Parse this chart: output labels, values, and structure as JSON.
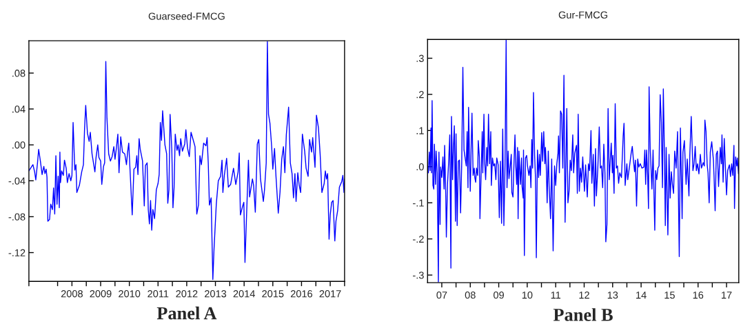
{
  "chart_data": [
    {
      "type": "line",
      "title": "Guarseed-FMCG",
      "annotations": [
        "Panel A"
      ],
      "grid": false,
      "legend": false,
      "xlim": [
        2007,
        2018
      ],
      "ylim": [
        -0.152,
        0.116
      ],
      "xticks": [
        {
          "value": 2007,
          "label": null
        },
        {
          "value": 2008,
          "label": null
        },
        {
          "value": 2008.5,
          "label": "2008"
        },
        {
          "value": 2009,
          "label": null
        },
        {
          "value": 2009.5,
          "label": "2009"
        },
        {
          "value": 2010,
          "label": null
        },
        {
          "value": 2010.5,
          "label": "2010"
        },
        {
          "value": 2011,
          "label": null
        },
        {
          "value": 2011.5,
          "label": "2011"
        },
        {
          "value": 2012,
          "label": null
        },
        {
          "value": 2012.5,
          "label": "2012"
        },
        {
          "value": 2013,
          "label": null
        },
        {
          "value": 2013.5,
          "label": "2013"
        },
        {
          "value": 2014,
          "label": null
        },
        {
          "value": 2014.5,
          "label": "2014"
        },
        {
          "value": 2015,
          "label": null
        },
        {
          "value": 2015.5,
          "label": "2015"
        },
        {
          "value": 2016,
          "label": null
        },
        {
          "value": 2016.5,
          "label": "2016"
        },
        {
          "value": 2017,
          "label": null
        },
        {
          "value": 2017.5,
          "label": "2017"
        },
        {
          "value": 2018,
          "label": null
        }
      ],
      "yticks": [
        {
          "value": -0.12,
          "label": "-.12"
        },
        {
          "value": -0.08,
          "label": "-.08"
        },
        {
          "value": -0.04,
          "label": "-.04"
        },
        {
          "value": 0,
          "label": ".00"
        },
        {
          "value": 0.04,
          "label": ".04"
        },
        {
          "value": 0.08,
          "label": ".08"
        }
      ],
      "series": [
        {
          "color": "#0000ff",
          "x": [
            2007.0,
            2007.14,
            2007.2,
            2007.24,
            2007.3,
            2007.34,
            2007.4,
            2007.46,
            2007.52,
            2007.56,
            2007.6,
            2007.63,
            2007.66,
            2007.72,
            2007.76,
            2007.82,
            2007.86,
            2007.9,
            2007.94,
            2007.98,
            2008.02,
            2008.06,
            2008.08,
            2008.1,
            2008.14,
            2008.2,
            2008.24,
            2008.3,
            2008.34,
            2008.4,
            2008.46,
            2008.5,
            2008.54,
            2008.6,
            2008.64,
            2008.67,
            2008.76,
            2008.84,
            2008.9,
            2008.94,
            2008.98,
            2009.04,
            2009.1,
            2009.14,
            2009.2,
            2009.26,
            2009.3,
            2009.34,
            2009.4,
            2009.44,
            2009.5,
            2009.54,
            2009.6,
            2009.64,
            2009.68,
            2009.72,
            2009.78,
            2009.84,
            2009.9,
            2009.96,
            2010.0,
            2010.04,
            2010.1,
            2010.14,
            2010.2,
            2010.26,
            2010.34,
            2010.4,
            2010.44,
            2010.48,
            2010.52,
            2010.6,
            2010.66,
            2010.72,
            2010.76,
            2010.8,
            2010.84,
            2010.88,
            2010.96,
            2011.02,
            2011.06,
            2011.12,
            2011.16,
            2011.2,
            2011.24,
            2011.28,
            2011.32,
            2011.38,
            2011.44,
            2011.5,
            2011.54,
            2011.58,
            2011.62,
            2011.66,
            2011.74,
            2011.8,
            2011.84,
            2011.88,
            2011.92,
            2011.98,
            2012.02,
            2012.06,
            2012.1,
            2012.16,
            2012.2,
            2012.25,
            2012.29,
            2012.35,
            2012.43,
            2012.47,
            2012.53,
            2012.59,
            2012.65,
            2012.73,
            2012.79,
            2012.85,
            2012.91,
            2012.96,
            2013.01,
            2013.09,
            2013.17,
            2013.21,
            2013.25,
            2013.29,
            2013.35,
            2013.41,
            2013.45,
            2013.53,
            2013.6,
            2013.68,
            2013.73,
            2013.76,
            2013.81,
            2013.89,
            2013.95,
            2014.03,
            2014.13,
            2014.21,
            2014.29,
            2014.33,
            2014.37,
            2014.45,
            2014.49,
            2014.53,
            2014.65,
            2014.69,
            2014.79,
            2014.83,
            2014.89,
            2014.96,
            2015.01,
            2015.07,
            2015.17,
            2015.21,
            2015.27,
            2015.31,
            2015.35,
            2015.4,
            2015.46,
            2015.5,
            2015.56,
            2015.61,
            2015.69,
            2015.75,
            2015.81,
            2015.87,
            2015.92,
            2015.97,
            2016.05,
            2016.11,
            2016.17,
            2016.22,
            2016.27,
            2016.31,
            2016.37,
            2016.42,
            2016.47,
            2016.53,
            2016.61,
            2016.66,
            2016.73,
            2016.78,
            2016.85,
            2016.89,
            2016.97,
            2017.02,
            2017.09,
            2017.15,
            2017.21,
            2017.29,
            2017.33,
            2017.37,
            2017.41,
            2017.46,
            2017.5,
            2017.55,
            2017.6,
            2017.66,
            2017.7,
            2017.76,
            2017.82,
            2017.9,
            2017.94,
            2017.98,
            2018.0
          ],
          "values": [
            -0.029,
            -0.022,
            -0.03,
            -0.039,
            -0.02,
            -0.005,
            -0.018,
            -0.033,
            -0.024,
            -0.032,
            -0.027,
            -0.036,
            -0.085,
            -0.083,
            -0.066,
            -0.072,
            -0.048,
            -0.077,
            -0.012,
            -0.066,
            -0.035,
            -0.07,
            -0.008,
            -0.042,
            -0.029,
            -0.034,
            -0.017,
            -0.026,
            -0.042,
            -0.032,
            -0.04,
            -0.034,
            0.025,
            -0.028,
            -0.022,
            -0.053,
            -0.045,
            -0.03,
            -0.022,
            0.018,
            0.044,
            0.013,
            0.004,
            0.014,
            -0.01,
            -0.022,
            -0.03,
            -0.014,
            0.0,
            -0.014,
            -0.018,
            -0.044,
            -0.024,
            -0.02,
            0.093,
            0.03,
            -0.01,
            -0.018,
            -0.013,
            -0.002,
            -0.016,
            -0.006,
            0.012,
            -0.031,
            0.009,
            -0.008,
            -0.01,
            -0.022,
            -0.008,
            0.002,
            -0.025,
            -0.078,
            -0.027,
            -0.025,
            -0.012,
            -0.033,
            0.007,
            -0.005,
            -0.018,
            -0.068,
            -0.023,
            -0.02,
            -0.072,
            -0.088,
            -0.062,
            -0.095,
            -0.072,
            -0.082,
            -0.05,
            -0.043,
            -0.033,
            0.025,
            0.005,
            0.038,
            0.0,
            -0.01,
            -0.065,
            -0.05,
            0.034,
            -0.005,
            -0.07,
            -0.047,
            0.012,
            -0.006,
            0.0,
            -0.012,
            0.007,
            -0.007,
            0.001,
            0.017,
            -0.004,
            -0.013,
            0.014,
            0.005,
            -0.002,
            -0.077,
            -0.067,
            -0.012,
            -0.022,
            0.002,
            -0.001,
            0.008,
            -0.02,
            -0.067,
            -0.059,
            -0.15,
            -0.117,
            -0.066,
            -0.04,
            -0.035,
            -0.017,
            -0.053,
            -0.034,
            -0.015,
            -0.047,
            -0.044,
            -0.026,
            -0.044,
            -0.03,
            -0.009,
            -0.078,
            -0.068,
            -0.064,
            -0.131,
            -0.017,
            -0.058,
            -0.038,
            -0.045,
            -0.075,
            0.001,
            0.006,
            -0.038,
            -0.063,
            -0.05,
            -0.02,
            0.115,
            0.034,
            0.024,
            -0.002,
            -0.027,
            -0.004,
            -0.035,
            -0.076,
            -0.053,
            -0.016,
            -0.002,
            -0.031,
            0.011,
            0.042,
            -0.02,
            -0.032,
            -0.059,
            -0.032,
            -0.063,
            -0.031,
            -0.045,
            -0.053,
            0.012,
            -0.007,
            -0.026,
            -0.035,
            0.006,
            -0.008,
            0.008,
            -0.025,
            0.033,
            0.019,
            -0.011,
            -0.053,
            -0.043,
            -0.029,
            -0.038,
            -0.032,
            -0.105,
            -0.078,
            -0.064,
            -0.062,
            -0.107,
            -0.085,
            -0.073,
            -0.047,
            -0.041,
            -0.034,
            -0.053,
            -0.038
          ]
        }
      ]
    },
    {
      "type": "line",
      "title": "Gur-FMCG",
      "annotations": [
        "Panel B"
      ],
      "grid": false,
      "legend": false,
      "xlim": [
        7,
        17.93
      ],
      "ylim": [
        -0.321,
        0.352
      ],
      "xticks": [
        {
          "value": 7.5,
          "label": "07"
        },
        {
          "value": 8,
          "label": null
        },
        {
          "value": 8.5,
          "label": "08"
        },
        {
          "value": 9,
          "label": null
        },
        {
          "value": 9.5,
          "label": "09"
        },
        {
          "value": 10,
          "label": null
        },
        {
          "value": 10.5,
          "label": "10"
        },
        {
          "value": 11,
          "label": null
        },
        {
          "value": 11.5,
          "label": "11"
        },
        {
          "value": 12,
          "label": null
        },
        {
          "value": 12.5,
          "label": "12"
        },
        {
          "value": 13,
          "label": null
        },
        {
          "value": 13.5,
          "label": "13"
        },
        {
          "value": 14,
          "label": null
        },
        {
          "value": 14.5,
          "label": "14"
        },
        {
          "value": 15,
          "label": null
        },
        {
          "value": 15.5,
          "label": "15"
        },
        {
          "value": 16,
          "label": null
        },
        {
          "value": 16.5,
          "label": "16"
        },
        {
          "value": 17,
          "label": null
        },
        {
          "value": 17.5,
          "label": "17"
        }
      ],
      "yticks": [
        {
          "value": -0.3,
          "label": "-.3"
        },
        {
          "value": -0.2,
          "label": "-.2"
        },
        {
          "value": -0.1,
          "label": "-.1"
        },
        {
          "value": 0,
          "label": ".0"
        },
        {
          "value": 0.1,
          "label": ".1"
        },
        {
          "value": 0.2,
          "label": ".2"
        },
        {
          "value": 0.3,
          "label": ".3"
        }
      ],
      "series": [
        {
          "color": "#0000ff",
          "x": [
            7.0,
            7.03,
            7.06,
            7.09,
            7.12,
            7.14,
            7.16,
            7.19,
            7.22,
            7.24,
            7.28,
            7.3,
            7.34,
            7.38,
            7.4,
            7.44,
            7.46,
            7.5,
            7.54,
            7.58,
            7.6,
            7.64,
            7.66,
            7.7,
            7.74,
            7.78,
            7.82,
            7.84,
            7.88,
            7.91,
            7.94,
            7.98,
            8.0,
            8.04,
            8.08,
            8.12,
            8.16,
            8.2,
            8.24,
            8.28,
            8.32,
            8.36,
            8.39,
            8.42,
            8.44,
            8.48,
            8.5,
            8.53,
            8.56,
            8.6,
            8.64,
            8.66,
            8.69,
            8.72,
            8.76,
            8.78,
            8.82,
            8.84,
            8.88,
            8.92,
            8.94,
            8.98,
            9.01,
            9.04,
            9.08,
            9.11,
            9.14,
            9.18,
            9.22,
            9.24,
            9.28,
            9.32,
            9.36,
            9.4,
            9.43,
            9.48,
            9.52,
            9.56,
            9.6,
            9.64,
            9.68,
            9.72,
            9.76,
            9.79,
            9.83,
            9.86,
            9.9,
            9.94,
            9.96,
            10.0,
            10.04,
            10.07,
            10.1,
            10.13,
            10.16,
            10.18,
            10.21,
            10.26,
            10.3,
            10.32,
            10.36,
            10.37,
            10.4,
            10.44,
            10.48,
            10.51,
            10.56,
            10.6,
            10.63,
            10.66,
            10.69,
            10.72,
            10.76,
            10.79,
            10.82,
            10.86,
            10.9,
            10.93,
            10.96,
            11.01,
            11.04,
            11.08,
            11.12,
            11.14,
            11.17,
            11.2,
            11.24,
            11.27,
            11.32,
            11.36,
            11.41,
            11.46,
            11.5,
            11.54,
            11.58,
            11.6,
            11.63,
            11.67,
            11.71,
            11.75,
            11.79,
            11.83,
            11.89,
            11.93,
            11.97,
            12.01,
            12.05,
            12.1,
            12.13,
            12.17,
            12.23,
            12.26,
            12.29,
            12.33,
            12.37,
            12.41,
            12.45,
            12.51,
            12.55,
            12.61,
            12.65,
            12.69,
            12.74,
            12.77,
            12.82,
            12.86,
            12.9,
            12.93,
            12.98,
            13.03,
            13.07,
            13.11,
            13.15,
            13.19,
            13.23,
            13.26,
            13.3,
            13.34,
            13.38,
            13.42,
            13.45,
            13.49,
            13.51,
            13.55,
            13.59,
            13.63,
            13.67,
            13.71,
            13.75,
            13.81,
            13.87,
            13.9,
            13.94,
            14.0,
            14.03,
            14.1,
            14.15,
            14.19,
            14.23,
            14.27,
            14.3,
            14.34,
            14.38,
            14.42,
            14.47,
            14.53,
            14.6,
            14.63,
            14.66,
            14.69,
            14.73,
            14.76,
            14.78,
            14.82,
            14.88,
            14.92,
            14.96,
            14.98,
            15.01,
            15.05,
            15.09,
            15.13,
            15.17,
            15.21,
            15.25,
            15.28,
            15.32,
            15.35,
            15.38,
            15.44,
            15.48,
            15.52,
            15.56,
            15.6,
            15.64,
            15.68,
            15.73,
            15.78,
            15.84,
            15.88,
            15.92,
            15.94,
            15.97,
            16.02,
            16.08,
            16.12,
            16.18,
            16.21,
            16.26,
            16.32,
            16.36,
            16.4,
            16.44,
            16.48,
            16.53,
            16.58,
            16.62,
            16.68,
            16.72,
            16.74,
            16.78,
            16.82,
            16.85,
            16.89,
            16.93,
            16.98,
            17.04,
            17.06,
            17.1,
            17.14,
            17.18,
            17.22,
            17.28,
            17.32,
            17.34,
            17.38,
            17.42,
            17.46,
            17.5,
            17.54,
            17.6,
            17.64,
            17.68,
            17.72,
            17.76,
            17.78,
            17.82,
            17.86,
            17.88,
            17.92
          ],
          "values": [
            0.002,
            -0.017,
            0.04,
            -0.011,
            0.107,
            -0.017,
            0.183,
            -0.052,
            -0.062,
            0.062,
            -0.049,
            0.043,
            -0.017,
            -0.319,
            0.04,
            -0.16,
            -0.001,
            -0.03,
            0.027,
            -0.062,
            0.059,
            -0.081,
            -0.195,
            -0.049,
            0.011,
            0.088,
            -0.281,
            0.139,
            -0.036,
            0.056,
            0.113,
            -0.151,
            0.091,
            -0.163,
            0.015,
            0.018,
            -0.128,
            0.011,
            0.275,
            0.046,
            0.024,
            0.002,
            0.097,
            -0.058,
            0.164,
            -0.001,
            -0.068,
            0.046,
            0.148,
            -0.024,
            -0.004,
            -0.03,
            -0.043,
            -0.004,
            -0.024,
            0.072,
            0.027,
            -0.144,
            -0.024,
            0.097,
            -0.017,
            0.145,
            0.008,
            -0.036,
            0.053,
            0.002,
            0.145,
            0.008,
            0.097,
            -0.052,
            0.024,
            0.002,
            0.008,
            -0.036,
            0.024,
            0.005,
            -0.141,
            0.015,
            -0.157,
            0.104,
            -0.163,
            0.002,
            0.35,
            -0.058,
            0.043,
            -0.033,
            -0.001,
            0.034,
            -0.071,
            -0.084,
            0.021,
            0.088,
            -0.001,
            -0.049,
            0.053,
            -0.144,
            0.043,
            -0.049,
            0.024,
            -0.055,
            -0.087,
            0.046,
            -0.246,
            0.024,
            0.031,
            0.002,
            -0.024,
            0.002,
            -0.058,
            0.075,
            -0.004,
            0.205,
            0.031,
            -0.03,
            -0.252,
            0.046,
            -0.03,
            0.034,
            -0.024,
            0.094,
            0.015,
            0.097,
            0.008,
            0.053,
            -0.001,
            -0.1,
            0.043,
            -0.055,
            -0.144,
            0.021,
            -0.233,
            0.002,
            -0.052,
            0.008,
            0.037,
            0.085,
            -0.017,
            0.154,
            0.145,
            -0.004,
            0.253,
            -0.154,
            0.161,
            -0.1,
            -0.068,
            0.018,
            -0.011,
            0.088,
            -0.017,
            0.037,
            0.059,
            -0.074,
            0.145,
            -0.068,
            -0.004,
            -0.043,
            0.027,
            -0.068,
            0.005,
            -0.084,
            0.008,
            -0.011,
            0.1,
            -0.046,
            0.034,
            -0.109,
            0.05,
            -0.081,
            -0.004,
            0.11,
            -0.004,
            0.002,
            -0.058,
            0.062,
            -0.017,
            -0.208,
            -0.16,
            0.161,
            -0.036,
            0.021,
            0.065,
            -0.017,
            0.031,
            -0.074,
            0.174,
            -0.004,
            0.002,
            -0.046,
            -0.017,
            -0.03,
            0.085,
            0.12,
            -0.052,
            0.008,
            -0.036,
            0.005,
            0.037,
            0.056,
            0.018,
            -0.014,
            0.018,
            -0.109,
            0.021,
            -0.001,
            0.008,
            -0.004,
            -0.001,
            0.046,
            -0.049,
            0.046,
            -0.024,
            -0.116,
            0.221,
            0.05,
            -0.062,
            0.046,
            -0.106,
            -0.176,
            -0.011,
            -0.036,
            -0.004,
            0.002,
            0.199,
            0.123,
            -0.058,
            0.215,
            0.034,
            -0.163,
            0.053,
            -0.189,
            0.034,
            -0.087,
            -0.014,
            -0.049,
            -0.074,
            0.043,
            -0.004,
            0.097,
            -0.249,
            0.107,
            -0.055,
            -0.144,
            0.04,
            0.072,
            -0.049,
            0.021,
            -0.081,
            0.031,
            0.139,
            -0.011,
            0.008,
            0.056,
            -0.011,
            0.008,
            -0.02,
            0.034,
            -0.004,
            0.011,
            0.002,
            0.129,
            0.097,
            0.005,
            -0.017,
            -0.1,
            0.04,
            0.069,
            0.018,
            -0.024,
            -0.122,
            0.034,
            0.043,
            -0.055,
            0.053,
            0.008,
            0.088,
            -0.043,
            0.078,
            -0.001,
            -0.078,
            -0.011,
            0.005,
            -0.027,
            0.008,
            -0.024,
            0.059,
            -0.116,
            0.027,
            0.002,
            0.024,
            -0.02
          ]
        }
      ]
    }
  ]
}
